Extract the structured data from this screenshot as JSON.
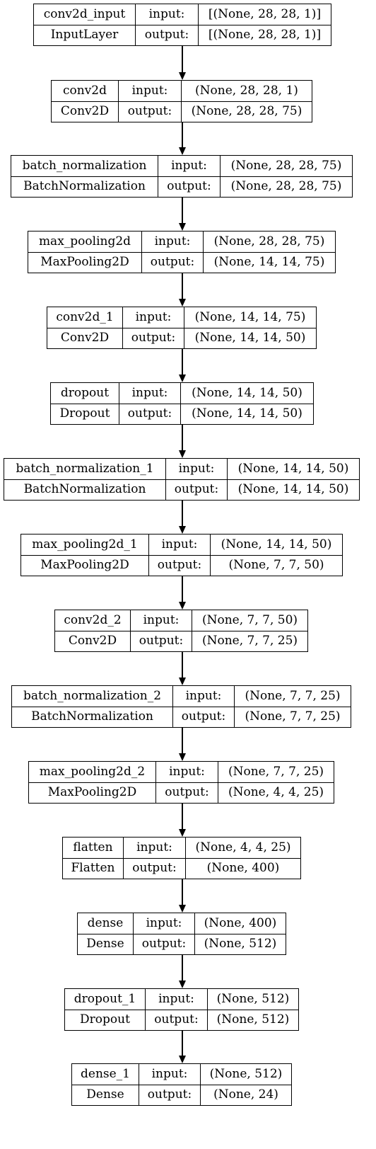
{
  "diagram": {
    "type": "keras-model-plot",
    "layers": [
      {
        "name": "conv2d_input",
        "class": "InputLayer",
        "input_label": "input:",
        "output_label": "output:",
        "input_shape": "[(None, 28, 28, 1)]",
        "output_shape": "[(None, 28, 28, 1)]"
      },
      {
        "name": "conv2d",
        "class": "Conv2D",
        "input_label": "input:",
        "output_label": "output:",
        "input_shape": "(None, 28, 28, 1)",
        "output_shape": "(None, 28, 28, 75)"
      },
      {
        "name": "batch_normalization",
        "class": "BatchNormalization",
        "input_label": "input:",
        "output_label": "output:",
        "input_shape": "(None, 28, 28, 75)",
        "output_shape": "(None, 28, 28, 75)"
      },
      {
        "name": "max_pooling2d",
        "class": "MaxPooling2D",
        "input_label": "input:",
        "output_label": "output:",
        "input_shape": "(None, 28, 28, 75)",
        "output_shape": "(None, 14, 14, 75)"
      },
      {
        "name": "conv2d_1",
        "class": "Conv2D",
        "input_label": "input:",
        "output_label": "output:",
        "input_shape": "(None, 14, 14, 75)",
        "output_shape": "(None, 14, 14, 50)"
      },
      {
        "name": "dropout",
        "class": "Dropout",
        "input_label": "input:",
        "output_label": "output:",
        "input_shape": "(None, 14, 14, 50)",
        "output_shape": "(None, 14, 14, 50)"
      },
      {
        "name": "batch_normalization_1",
        "class": "BatchNormalization",
        "input_label": "input:",
        "output_label": "output:",
        "input_shape": "(None, 14, 14, 50)",
        "output_shape": "(None, 14, 14, 50)"
      },
      {
        "name": "max_pooling2d_1",
        "class": "MaxPooling2D",
        "input_label": "input:",
        "output_label": "output:",
        "input_shape": "(None, 14, 14, 50)",
        "output_shape": "(None, 7, 7, 50)"
      },
      {
        "name": "conv2d_2",
        "class": "Conv2D",
        "input_label": "input:",
        "output_label": "output:",
        "input_shape": "(None, 7, 7, 50)",
        "output_shape": "(None, 7, 7, 25)"
      },
      {
        "name": "batch_normalization_2",
        "class": "BatchNormalization",
        "input_label": "input:",
        "output_label": "output:",
        "input_shape": "(None, 7, 7, 25)",
        "output_shape": "(None, 7, 7, 25)"
      },
      {
        "name": "max_pooling2d_2",
        "class": "MaxPooling2D",
        "input_label": "input:",
        "output_label": "output:",
        "input_shape": "(None, 7, 7, 25)",
        "output_shape": "(None, 4, 4, 25)"
      },
      {
        "name": "flatten",
        "class": "Flatten",
        "input_label": "input:",
        "output_label": "output:",
        "input_shape": "(None, 4, 4, 25)",
        "output_shape": "(None, 400)"
      },
      {
        "name": "dense",
        "class": "Dense",
        "input_label": "input:",
        "output_label": "output:",
        "input_shape": "(None, 400)",
        "output_shape": "(None, 512)"
      },
      {
        "name": "dropout_1",
        "class": "Dropout",
        "input_label": "input:",
        "output_label": "output:",
        "input_shape": "(None, 512)",
        "output_shape": "(None, 512)"
      },
      {
        "name": "dense_1",
        "class": "Dense",
        "input_label": "input:",
        "output_label": "output:",
        "input_shape": "(None, 512)",
        "output_shape": "(None, 24)"
      }
    ]
  }
}
